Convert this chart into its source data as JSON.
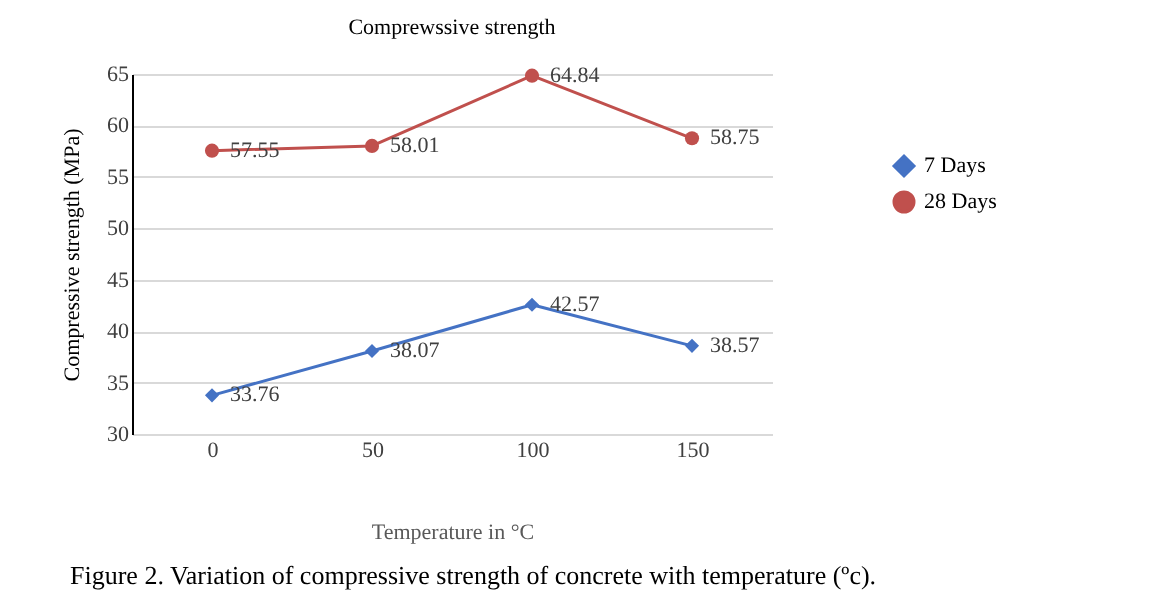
{
  "chart_data": {
    "type": "line",
    "title": "Comprewssive strength",
    "xlabel": "Temperature in °C",
    "ylabel": "Compressive strength (MPa)",
    "categories": [
      "0",
      "50",
      "100",
      "150"
    ],
    "series": [
      {
        "name": "7 Days",
        "color": "#4472c4",
        "marker": "diamond",
        "values": [
          33.76,
          38.07,
          42.57,
          38.57
        ]
      },
      {
        "name": "28 Days",
        "color": "#c0504d",
        "marker": "circle",
        "values": [
          57.55,
          58.01,
          64.84,
          58.75
        ]
      }
    ],
    "ylim": [
      30,
      65
    ],
    "yticks": [
      30,
      35,
      40,
      45,
      50,
      55,
      60,
      65
    ],
    "grid": "y",
    "legend": "right",
    "data_labels": true,
    "annotations": [
      "Figure 2. Variation of compressive strength of concrete with temperature (ºc)."
    ]
  }
}
